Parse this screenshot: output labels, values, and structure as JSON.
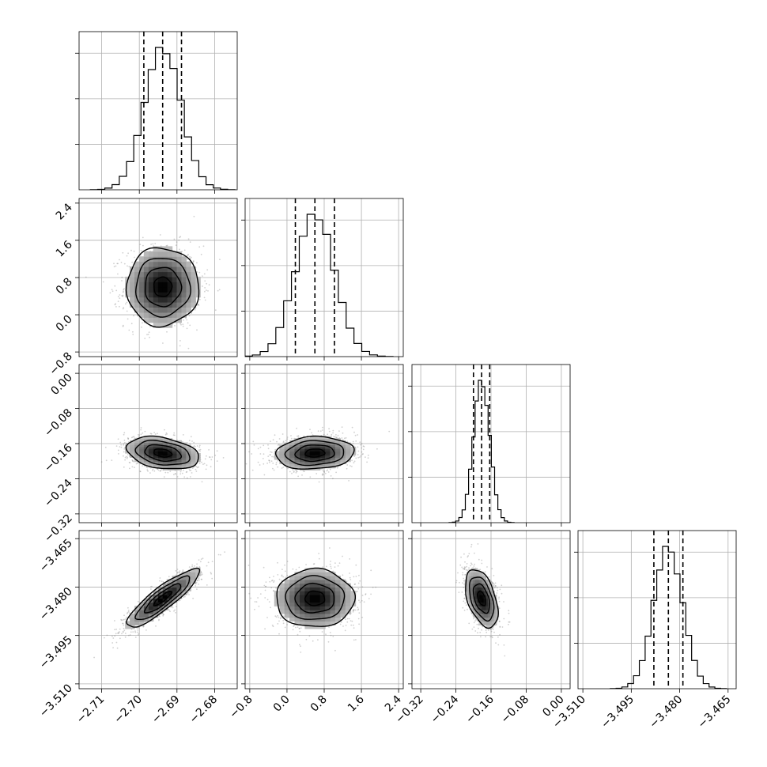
{
  "chart_data": {
    "type": "corner",
    "title": "",
    "grid": true,
    "colors": {
      "points": "#7a7a7a",
      "density_dark": "#000000",
      "density_light": "#e6e6e6",
      "grid": "#b0b0b0",
      "line": "#000000"
    },
    "parameters": [
      {
        "index": 0,
        "range": [
          -2.716,
          -2.674
        ],
        "ticks": [
          -2.71,
          -2.7,
          -2.69,
          -2.68
        ],
        "tick_labels": [
          "−2.71",
          "−2.70",
          "−2.69",
          "−2.68"
        ],
        "mean": -2.6938,
        "sigma": 0.0048,
        "quantiles": [
          -2.6988,
          -2.6938,
          -2.6888
        ]
      },
      {
        "index": 1,
        "range": [
          -0.9,
          2.5
        ],
        "ticks": [
          -0.8,
          0.0,
          0.8,
          1.6,
          2.4
        ],
        "tick_labels": [
          "−0.8",
          "0.0",
          "0.8",
          "1.6",
          "2.4"
        ],
        "mean": 0.6,
        "sigma": 0.42,
        "quantiles": [
          0.18,
          0.6,
          1.02
        ]
      },
      {
        "index": 2,
        "range": [
          -0.34,
          0.02
        ],
        "ticks": [
          -0.32,
          -0.24,
          -0.16,
          -0.08,
          0.0
        ],
        "tick_labels": [
          "−0.32",
          "−0.24",
          "−0.16",
          "−0.08",
          "0.00"
        ],
        "mean": -0.1815,
        "sigma": 0.0185,
        "quantiles": [
          -0.2,
          -0.1815,
          -0.163
        ]
      },
      {
        "index": 3,
        "range": [
          -3.5115,
          -3.4625
        ],
        "ticks": [
          -3.51,
          -3.495,
          -3.48,
          -3.465
        ],
        "tick_labels": [
          "−3.510",
          "−3.495",
          "−3.480",
          "−3.465"
        ],
        "mean": -3.4835,
        "sigma": 0.0045,
        "quantiles": [
          -3.488,
          -3.4835,
          -3.479
        ]
      }
    ],
    "correlations": [
      [
        1.0,
        0.0,
        -0.3,
        0.88
      ],
      [
        0.0,
        1.0,
        0.1,
        0.0
      ],
      [
        -0.3,
        0.1,
        1.0,
        -0.45
      ],
      [
        0.88,
        0.0,
        -0.45,
        1.0
      ]
    ]
  }
}
